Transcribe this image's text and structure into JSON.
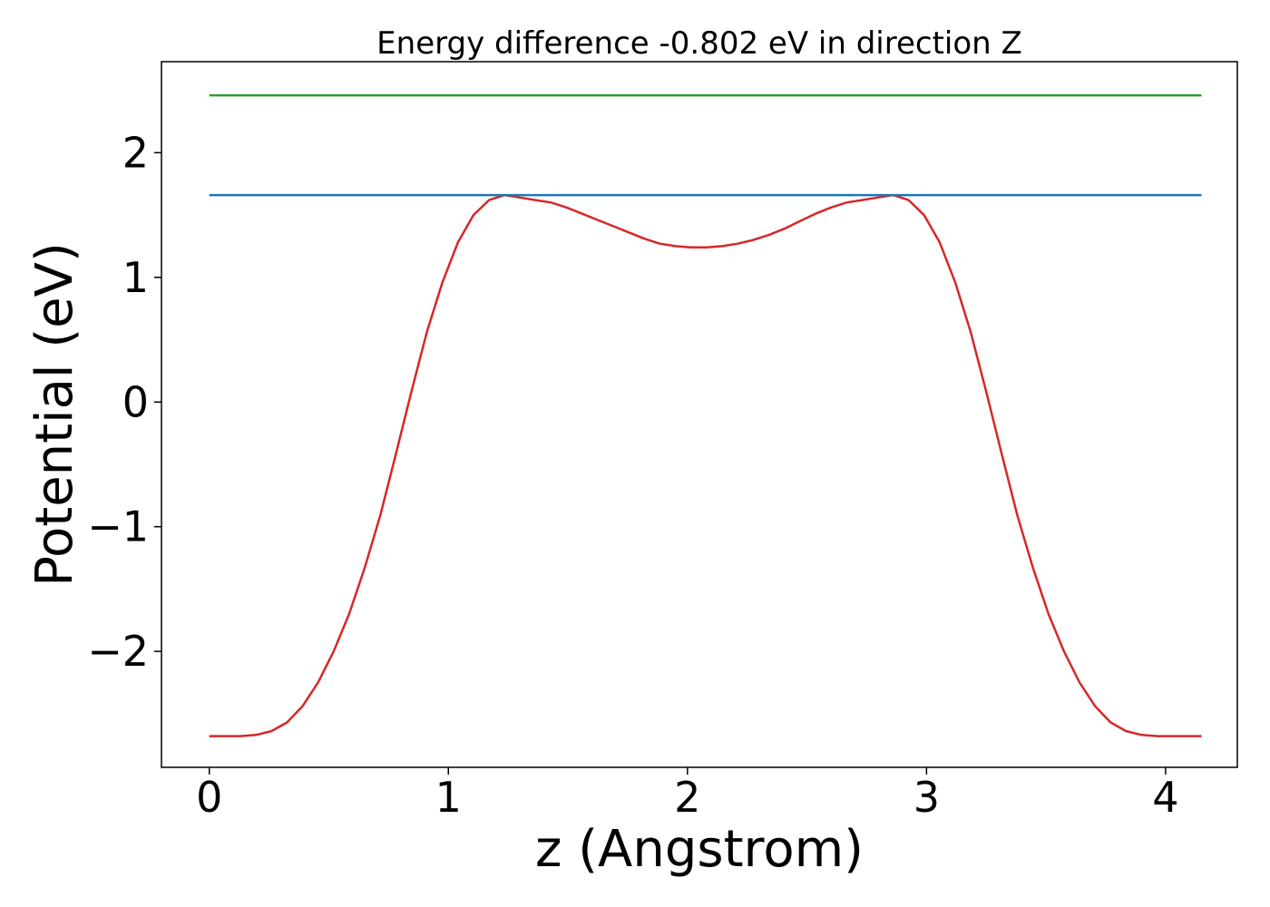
{
  "chart_data": {
    "type": "line",
    "title": "Energy difference -0.802 eV in direction Z",
    "xlabel": "z (Angstrom)",
    "ylabel": "Potential (eV)",
    "xlim": [
      -0.2,
      4.3
    ],
    "ylim": [
      -2.93,
      2.73
    ],
    "xticks": [
      0,
      1,
      2,
      3,
      4
    ],
    "xtick_labels": [
      "0",
      "1",
      "2",
      "3",
      "4"
    ],
    "yticks": [
      -2,
      -1,
      0,
      1,
      2
    ],
    "ytick_labels": [
      "−2",
      "−1",
      "0",
      "1",
      "2"
    ],
    "grid": false,
    "legend": "none",
    "series": [
      {
        "color": "#d62728",
        "x": [
          0,
          0.065,
          0.13,
          0.195,
          0.26,
          0.325,
          0.39,
          0.455,
          0.52,
          0.585,
          0.65,
          0.715,
          0.78,
          0.845,
          0.91,
          0.975,
          1.04,
          1.105,
          1.17,
          1.235,
          1.3,
          1.365,
          1.43,
          1.495,
          1.56,
          1.625,
          1.69,
          1.755,
          1.82,
          1.885,
          1.95,
          2.015,
          2.08,
          2.145,
          2.21,
          2.275,
          2.34,
          2.405,
          2.47,
          2.535,
          2.6,
          2.665,
          2.73,
          2.795,
          2.86,
          2.925,
          2.99,
          3.055,
          3.12,
          3.185,
          3.25,
          3.315,
          3.38,
          3.445,
          3.51,
          3.575,
          3.64,
          3.705,
          3.77,
          3.835,
          3.9,
          3.965,
          4.03,
          4.095,
          4.15
        ],
        "y": [
          -2.68,
          -2.68,
          -2.68,
          -2.67,
          -2.64,
          -2.57,
          -2.44,
          -2.25,
          -2.0,
          -1.7,
          -1.33,
          -0.91,
          -0.42,
          0.08,
          0.56,
          0.96,
          1.28,
          1.5,
          1.62,
          1.66,
          1.64,
          1.62,
          1.6,
          1.56,
          1.51,
          1.46,
          1.41,
          1.36,
          1.31,
          1.27,
          1.25,
          1.24,
          1.24,
          1.25,
          1.27,
          1.3,
          1.34,
          1.39,
          1.45,
          1.51,
          1.56,
          1.6,
          1.62,
          1.64,
          1.66,
          1.62,
          1.5,
          1.28,
          0.96,
          0.56,
          0.08,
          -0.42,
          -0.91,
          -1.33,
          -1.7,
          -2.0,
          -2.25,
          -2.44,
          -2.57,
          -2.64,
          -2.67,
          -2.68,
          -2.68,
          -2.68,
          -2.68
        ]
      },
      {
        "color": "#1f77b4",
        "x": [
          0,
          4.15
        ],
        "y": [
          1.66,
          1.66
        ]
      },
      {
        "color": "#2ca02c",
        "x": [
          0,
          4.15
        ],
        "y": [
          2.46,
          2.46
        ]
      }
    ]
  }
}
